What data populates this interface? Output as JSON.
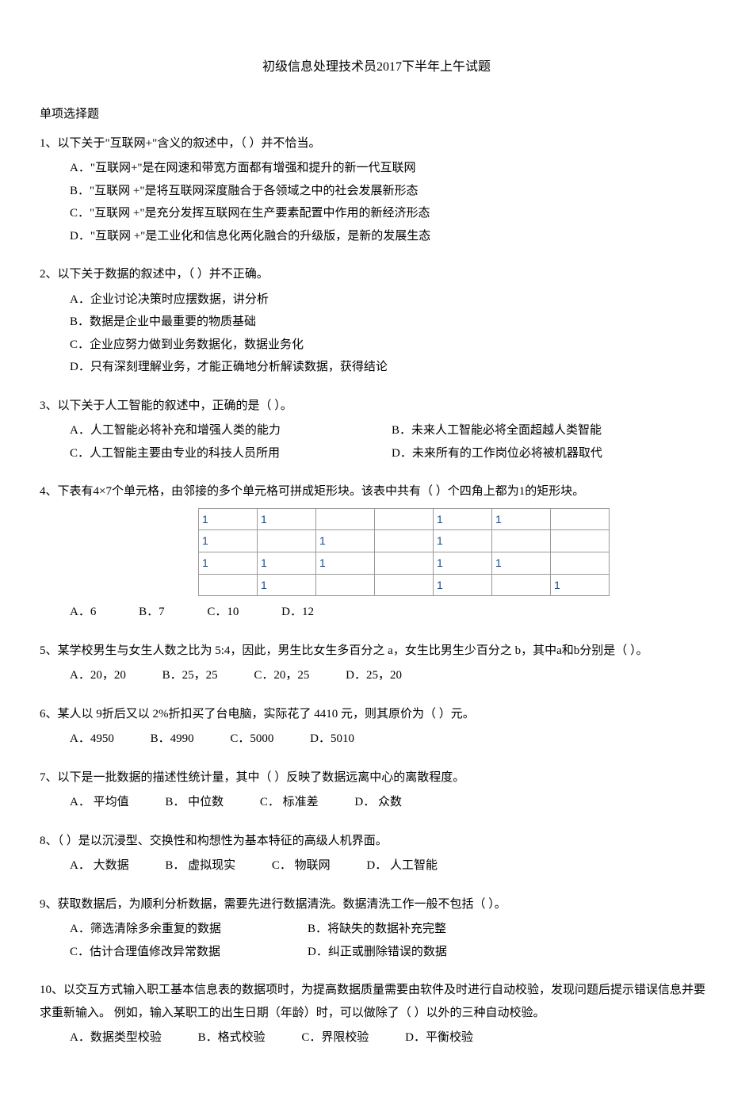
{
  "title": "初级信息处理技术员2017下半年上午试题",
  "section_header": "单项选择题",
  "questions": [
    {
      "num": "1、",
      "text": "以下关于\"互联网+\"含义的叙述中，（  ）并不恰当。",
      "options": [
        "A．\"互联网+\"是在网速和带宽方面都有增强和提升的新一代互联网",
        "B．\"互联网 +\"是将互联网深度融合于各领域之中的社会发展新形态",
        "C．\"互联网 +\"是充分发挥互联网在生产要素配置中作用的新经济形态",
        "D．\"互联网 +\"是工业化和信息化两化融合的升级版，是新的发展生态"
      ]
    },
    {
      "num": "2、",
      "text": "以下关于数据的叙述中，（     ）并不正确。",
      "options": [
        "A．企业讨论决策时应摆数据，讲分析",
        "B．数据是企业中最重要的物质基础",
        "C．企业应努力做到业务数据化，数据业务化",
        "D．只有深刻理解业务，才能正确地分析解读数据，获得结论"
      ]
    },
    {
      "num": "3、",
      "text": "以下关于人工智能的叙述中，正确的是（  ）。",
      "options_left": [
        "A．人工智能必将补充和增强人类的能力",
        "C．人工智能主要由专业的科技人员所用"
      ],
      "options_right": [
        "B．未来人工智能必将全面超越人类智能",
        "D．未来所有的工作岗位必将被机器取代"
      ]
    },
    {
      "num": "4、",
      "text": "下表有4×7个单元格，由邻接的多个单元格可拼成矩形块。该表中共有（  ）个四角上都为1的矩形块。",
      "table": [
        [
          "1",
          "1",
          "",
          "",
          "1",
          "1",
          ""
        ],
        [
          "1",
          "",
          "1",
          "",
          "1",
          "",
          ""
        ],
        [
          "1",
          "1",
          "1",
          "",
          "1",
          "1",
          ""
        ],
        [
          "",
          "1",
          "",
          "",
          "1",
          "",
          "1"
        ]
      ],
      "options_inline": [
        "A．6",
        "B．7",
        "C．10",
        "D．12"
      ]
    },
    {
      "num": "5、",
      "text": "某学校男生与女生人数之比为 5:4，因此，男生比女生多百分之 a，女生比男生少百分之 b，其中a和b分别是（  ）。",
      "options_inline": [
        "A．20，20",
        "B．25，25",
        "C．20，25",
        "D．25，20"
      ]
    },
    {
      "num": "6、",
      "text": "某人以 9折后又以 2%折扣买了台电脑，实际花了 4410 元，则其原价为（  ）元。",
      "options_inline": [
        "A．4950",
        "B．4990",
        "C．5000",
        "D．5010"
      ]
    },
    {
      "num": "7、",
      "text": "以下是一批数据的描述性统计量，其中（    ）反映了数据远离中心的离散程度。",
      "options_inline": [
        "A． 平均值",
        "B． 中位数",
        "C． 标准差",
        "D． 众数"
      ]
    },
    {
      "num": "8、",
      "text": "（  ）是以沉浸型、交换性和构想性为基本特征的高级人机界面。",
      "options_inline": [
        "A． 大数据",
        "B． 虚拟现实",
        "C． 物联网",
        "D． 人工智能"
      ]
    },
    {
      "num": "9、",
      "text": "获取数据后，为顺利分析数据，需要先进行数据清洗。数据清洗工作一般不包括（        ）。",
      "options_left": [
        "A．筛选清除多余重复的数据",
        "C．估计合理值修改异常数据"
      ],
      "options_right": [
        "B．将缺失的数据补充完整",
        "D．纠正或删除错误的数据"
      ]
    },
    {
      "num": "10、",
      "text": "以交互方式输入职工基本信息表的数据项时，为提高数据质量需要由软件及时进行自动校验，发现问题后提示错误信息并要求重新输入。  例如，输入某职工的出生日期（年龄）时，可以做除了（  ）以外的三种自动校验。",
      "options_inline": [
        "A．数据类型校验",
        "B．格式校验",
        "C．界限校验",
        "D．平衡校验"
      ]
    }
  ]
}
